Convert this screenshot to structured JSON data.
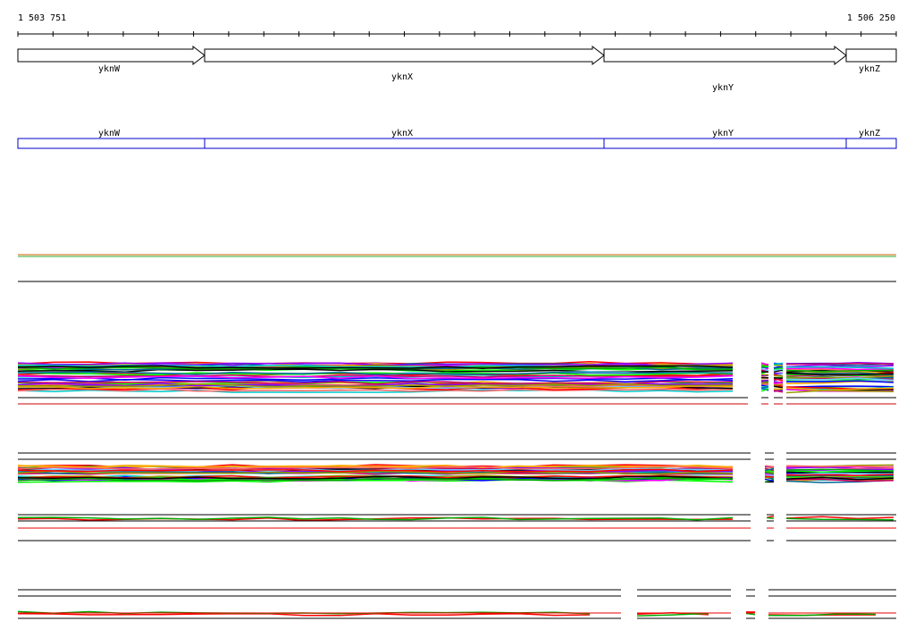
{
  "ruler": {
    "start": "1 503 751",
    "end": "1 506 250"
  },
  "genes": [
    {
      "label": "yknW"
    },
    {
      "label": "yknX"
    },
    {
      "label": "yknY"
    },
    {
      "label": "yknZ"
    }
  ],
  "transcripts": [
    {
      "label": "yknW"
    },
    {
      "label": "yknX"
    },
    {
      "label": "yknY"
    },
    {
      "label": "yknZ"
    }
  ]
}
